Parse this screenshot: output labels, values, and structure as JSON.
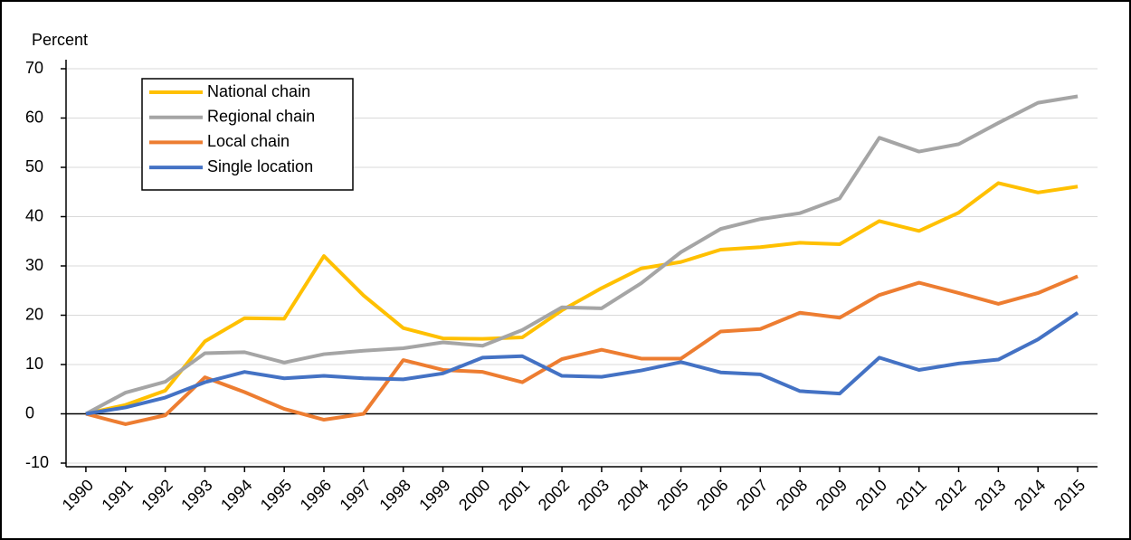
{
  "chart_data": {
    "type": "line",
    "ylabel": "Percent",
    "categories": [
      "1990",
      "1991",
      "1992",
      "1993",
      "1994",
      "1995",
      "1996",
      "1997",
      "1998",
      "1999",
      "2000",
      "2001",
      "2002",
      "2003",
      "2004",
      "2005",
      "2006",
      "2007",
      "2008",
      "2009",
      "2010",
      "2011",
      "2012",
      "2013",
      "2014",
      "2015"
    ],
    "series": [
      {
        "name": "National chain",
        "color": "#ffc000",
        "values": [
          0,
          1.8,
          4.7,
          14.7,
          19.4,
          19.3,
          32,
          24,
          17.4,
          15.3,
          15.2,
          15.5,
          21,
          25.5,
          29.5,
          30.8,
          33.3,
          33.8,
          34.7,
          34.4,
          39.1,
          37.1,
          40.8,
          46.8,
          44.9,
          46.1
        ]
      },
      {
        "name": "Regional chain",
        "color": "#a5a5a5",
        "values": [
          0,
          4.3,
          6.5,
          12.3,
          12.5,
          10.4,
          12.1,
          12.8,
          13.3,
          14.5,
          13.8,
          17,
          21.6,
          21.4,
          26.5,
          32.8,
          37.5,
          39.5,
          40.7,
          43.7,
          56,
          53.2,
          54.7,
          59,
          63.1,
          64.4
        ]
      },
      {
        "name": "Local chain",
        "color": "#ed7d31",
        "values": [
          0,
          -2.1,
          -0.3,
          7.4,
          4.4,
          1,
          -1.2,
          0,
          10.9,
          8.9,
          8.5,
          6.4,
          11.1,
          13,
          11.2,
          11.2,
          16.7,
          17.2,
          20.5,
          19.5,
          24.1,
          26.6,
          24.5,
          22.3,
          24.5,
          27.9
        ]
      },
      {
        "name": "Single location",
        "color": "#4472c4",
        "values": [
          0,
          1.3,
          3.3,
          6.4,
          8.5,
          7.2,
          7.7,
          7.2,
          7,
          8.2,
          11.4,
          11.7,
          7.7,
          7.5,
          8.8,
          10.5,
          8.4,
          8,
          4.6,
          4.1,
          11.4,
          8.9,
          10.2,
          11,
          15.1,
          20.5
        ]
      }
    ],
    "ylim": [
      -10,
      70
    ],
    "yticks": [
      -10,
      0,
      10,
      20,
      30,
      40,
      50,
      60,
      70
    ],
    "grid": true,
    "legend": "upper left"
  }
}
